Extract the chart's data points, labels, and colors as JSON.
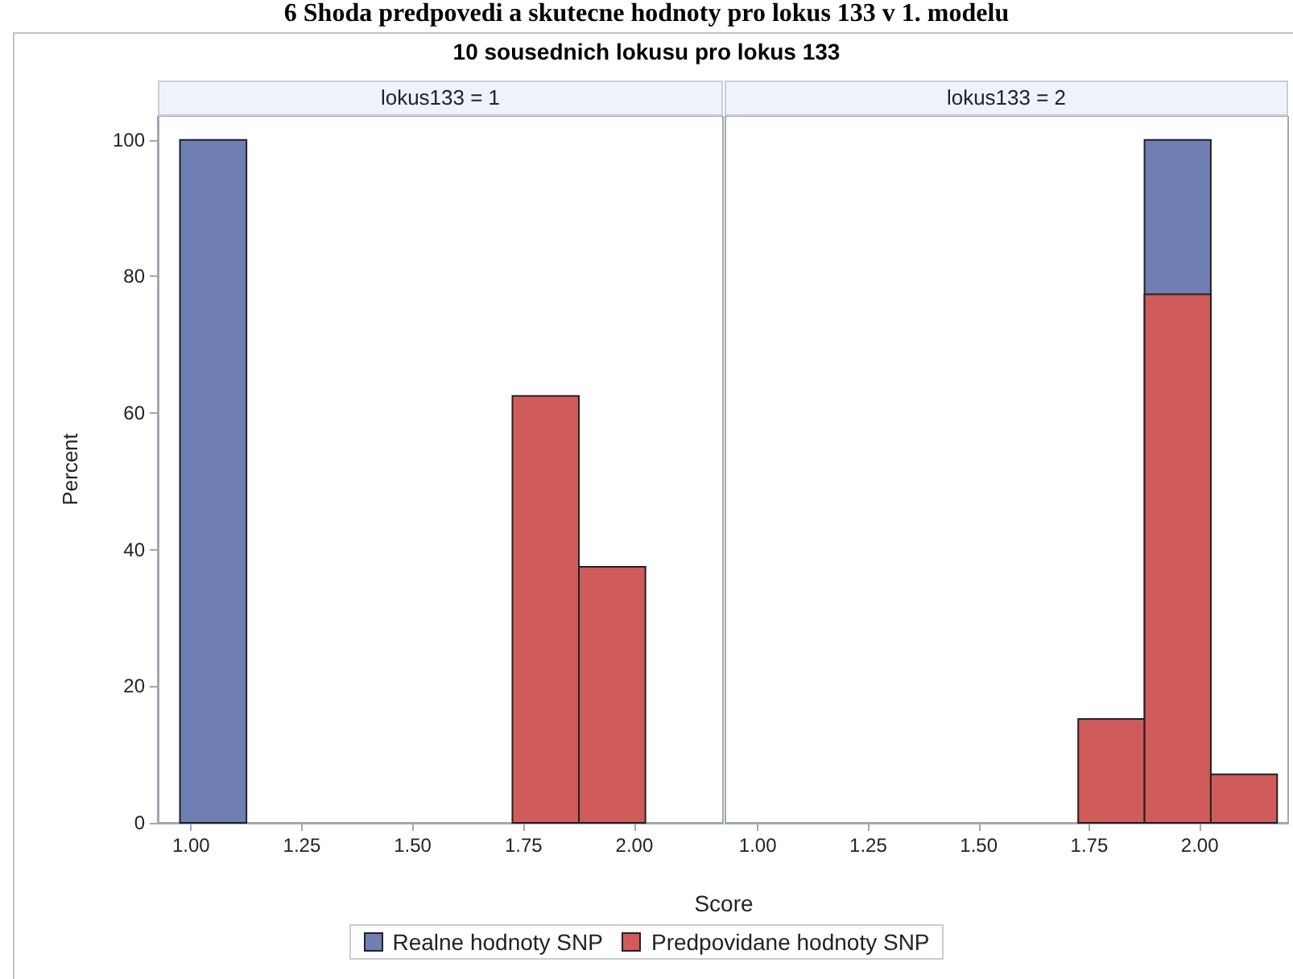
{
  "chart_data": [
    {
      "type": "histogram",
      "title": "lokus133 = 1",
      "annotations": [
        "6 Shoda predpovedi a skutecne hodnoty pro lokus 133 v 1. modelu",
        "10 sousednich lokusu pro lokus 133"
      ],
      "xlabel": "Score",
      "ylabel": "Percent",
      "bins": [
        0.975,
        1.125,
        1.275,
        1.425,
        1.575,
        1.725,
        1.875,
        2.025
      ],
      "series": [
        {
          "name": "Realne hodnoty SNP",
          "color": "#6f7eb3",
          "values": [
            100,
            0,
            0,
            0,
            0,
            0,
            0
          ]
        },
        {
          "name": "Predpovidane hodnoty SNP",
          "color": "#d05b5b",
          "values": [
            0,
            0,
            0,
            0,
            0,
            62.5,
            37.5
          ]
        }
      ],
      "xlim": [
        0.925,
        2.2
      ],
      "xticks": [
        {
          "value": 1,
          "label": "1.00"
        },
        {
          "value": 1.25,
          "label": "1.25"
        },
        {
          "value": 1.5,
          "label": "1.50"
        },
        {
          "value": 1.75,
          "label": "1.75"
        },
        {
          "value": 2,
          "label": "2.00"
        }
      ],
      "ylim": [
        0,
        103.5
      ],
      "yticks": [
        0,
        20,
        40,
        60,
        80,
        100
      ],
      "grid": false,
      "legend": "bottom"
    },
    {
      "type": "histogram",
      "title": "lokus133 = 2",
      "bins": [
        0.975,
        1.125,
        1.275,
        1.425,
        1.575,
        1.725,
        1.875,
        2.025,
        2.175
      ],
      "series": [
        {
          "color": "#6f7eb3",
          "values": [
            0,
            0,
            0,
            0,
            0,
            0,
            100,
            0
          ]
        },
        {
          "color": "#d05b5b",
          "values": [
            0,
            0,
            0,
            0,
            0,
            15.2,
            77.4,
            7.1
          ]
        }
      ],
      "xlim": [
        0.925,
        2.2
      ],
      "xticks": [
        {
          "value": 1,
          "label": "1.00"
        },
        {
          "value": 1.25,
          "label": "1.25"
        },
        {
          "value": 1.5,
          "label": "1.50"
        },
        {
          "value": 1.75,
          "label": "1.75"
        },
        {
          "value": 2,
          "label": "2.00"
        }
      ],
      "ylim": [
        0,
        103.5
      ],
      "yticks": [
        0,
        20,
        40,
        60,
        80,
        100
      ],
      "grid": false,
      "tick_labels": "x"
    }
  ]
}
